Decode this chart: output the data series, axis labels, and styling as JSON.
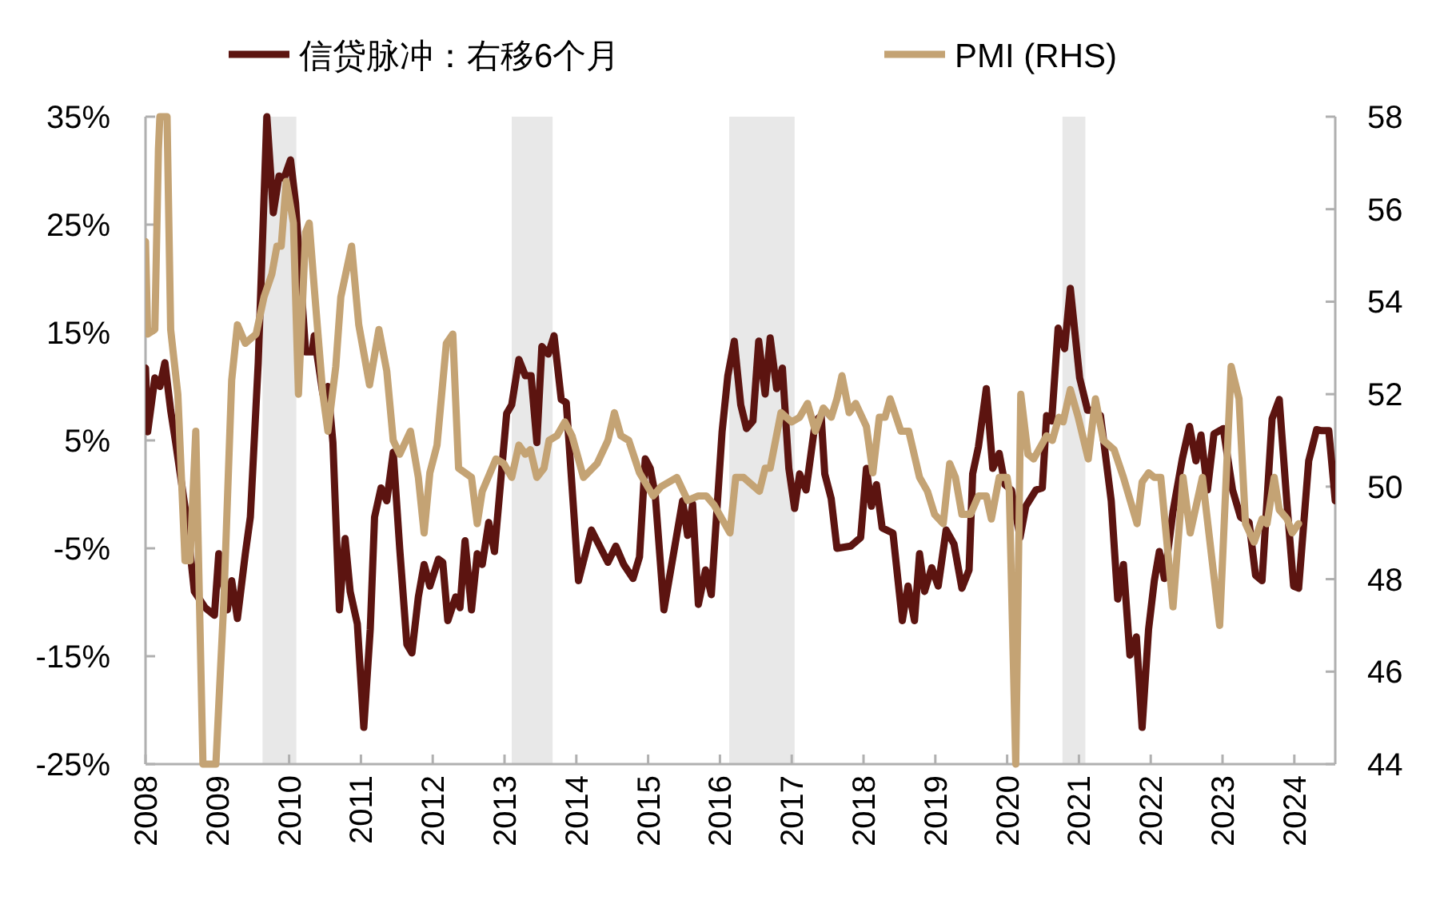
{
  "chart_data": {
    "type": "line",
    "legend": "top",
    "xlim": [
      2008,
      2024.57
    ],
    "xticks": [
      2008,
      2009,
      2010,
      2011,
      2012,
      2013,
      2014,
      2015,
      2016,
      2017,
      2018,
      2019,
      2020,
      2021,
      2022,
      2023,
      2024
    ],
    "ylim": [
      -25,
      35
    ],
    "yticks": [
      {
        "value": -25,
        "label": "-25%"
      },
      {
        "value": -15,
        "label": "-15%"
      },
      {
        "value": -5,
        "label": "-5%"
      },
      {
        "value": 5,
        "label": "5%"
      },
      {
        "value": 15,
        "label": "15%"
      },
      {
        "value": 25,
        "label": "25%"
      },
      {
        "value": 35,
        "label": "35%"
      }
    ],
    "y2lim": [
      44,
      58
    ],
    "y2ticks": [
      44,
      46,
      48,
      50,
      52,
      54,
      56,
      58
    ],
    "bands": [
      {
        "axis": "x",
        "from": 2009.63,
        "to": 2010.1,
        "color": "#e8e8e8"
      },
      {
        "axis": "x",
        "from": 2013.1,
        "to": 2013.67,
        "color": "#e8e8e8"
      },
      {
        "axis": "x",
        "from": 2016.13,
        "to": 2017.04,
        "color": "#e8e8e8"
      },
      {
        "axis": "x",
        "from": 2020.77,
        "to": 2021.09,
        "color": "#e8e8e8"
      }
    ],
    "series": [
      {
        "name": "信贷脉冲：右移6个月",
        "color": "#5c1410",
        "axis": "y",
        "x": [
          2008.0,
          2008.03,
          2008.13,
          2008.2,
          2008.27,
          2008.35,
          2008.42,
          2008.57,
          2008.68,
          2008.83,
          2008.96,
          2009.02,
          2009.14,
          2009.2,
          2009.28,
          2009.39,
          2009.46,
          2009.57,
          2009.69,
          2009.78,
          2009.86,
          2009.93,
          2010.02,
          2010.09,
          2010.23,
          2010.32,
          2010.35,
          2010.47,
          2010.54,
          2010.61,
          2010.7,
          2010.78,
          2010.85,
          2010.95,
          2011.04,
          2011.13,
          2011.19,
          2011.28,
          2011.36,
          2011.45,
          2011.54,
          2011.64,
          2011.71,
          2011.8,
          2011.88,
          2011.96,
          2012.08,
          2012.14,
          2012.21,
          2012.32,
          2012.38,
          2012.45,
          2012.54,
          2012.62,
          2012.69,
          2012.78,
          2012.86,
          2013.03,
          2013.1,
          2013.2,
          2013.29,
          2013.37,
          2013.45,
          2013.52,
          2013.61,
          2013.69,
          2013.79,
          2013.86,
          2014.03,
          2014.21,
          2014.44,
          2014.55,
          2014.66,
          2014.79,
          2014.88,
          2014.96,
          2015.03,
          2015.1,
          2015.22,
          2015.48,
          2015.55,
          2015.62,
          2015.7,
          2015.8,
          2015.88,
          2016.03,
          2016.11,
          2016.2,
          2016.29,
          2016.37,
          2016.46,
          2016.54,
          2016.63,
          2016.7,
          2016.79,
          2016.87,
          2016.96,
          2017.04,
          2017.11,
          2017.2,
          2017.33,
          2017.41,
          2017.46,
          2017.55,
          2017.63,
          2017.82,
          2017.96,
          2018.04,
          2018.11,
          2018.18,
          2018.26,
          2018.41,
          2018.54,
          2018.62,
          2018.71,
          2018.78,
          2018.85,
          2018.95,
          2019.04,
          2019.15,
          2019.26,
          2019.37,
          2019.47,
          2019.52,
          2019.6,
          2019.71,
          2019.8,
          2019.89,
          2019.97,
          2020.06,
          2020.18,
          2020.26,
          2020.4,
          2020.49,
          2020.55,
          2020.62,
          2020.71,
          2020.8,
          2020.88,
          2021.01,
          2021.12,
          2021.19,
          2021.3,
          2021.45,
          2021.54,
          2021.62,
          2021.71,
          2021.8,
          2021.88,
          2021.97,
          2022.05,
          2022.12,
          2022.19,
          2022.31,
          2022.44,
          2022.54,
          2022.63,
          2022.7,
          2022.79,
          2022.88,
          2023.01,
          2023.14,
          2023.25,
          2023.37,
          2023.46,
          2023.55,
          2023.69,
          2023.79,
          2023.9,
          2023.99,
          2024.06,
          2024.2,
          2024.31,
          2024.38,
          2024.48,
          2024.57
        ],
        "values": [
          11.7,
          5.8,
          10.8,
          10,
          12.2,
          7.8,
          4.8,
          -2.1,
          -9,
          -10.5,
          -11.2,
          -5.5,
          -10.7,
          -8,
          -11.5,
          -5.5,
          -2.1,
          12.2,
          35,
          26.1,
          29.5,
          29.3,
          31,
          27,
          13.2,
          13.2,
          14.7,
          9.3,
          10,
          4.8,
          -10.7,
          -4.1,
          -9,
          -12,
          -21.6,
          -12.5,
          -2.1,
          0.6,
          -0.6,
          3.9,
          -5,
          -13.9,
          -14.7,
          -9.5,
          -6.5,
          -8.5,
          -6,
          -6.3,
          -11.7,
          -9.5,
          -10.5,
          -4.3,
          -10.7,
          -5.5,
          -6.5,
          -2.6,
          -5.3,
          7.5,
          8.3,
          12.5,
          11,
          11,
          4.8,
          13.7,
          13,
          14.7,
          8.8,
          8.5,
          -8,
          -3.3,
          -6.3,
          -4.8,
          -6.5,
          -7.8,
          -5.8,
          3.3,
          2.4,
          -0.1,
          -10.7,
          -0.6,
          -3.8,
          -0.9,
          -10.2,
          -7,
          -9.3,
          5.8,
          11,
          14.2,
          8.3,
          6.1,
          6.8,
          14.2,
          9.3,
          14.5,
          9.8,
          11.7,
          2.4,
          -1.3,
          1.9,
          0.4,
          6.8,
          7.3,
          1.9,
          -0.4,
          -5,
          -4.8,
          -4,
          2.4,
          -1.1,
          0.9,
          -3.1,
          -3.6,
          -11.7,
          -8.5,
          -11.7,
          -5.5,
          -9,
          -6.8,
          -8.5,
          -3.3,
          -4.6,
          -8.7,
          -7,
          1.9,
          4.4,
          9.8,
          2.4,
          3.8,
          0.9,
          0.4,
          -4,
          -1.1,
          0.4,
          0.6,
          7.3,
          6.8,
          15.4,
          13.5,
          19.1,
          10.8,
          7.8,
          7.8,
          7.3,
          -0.6,
          -9.7,
          -6.5,
          -14.9,
          -13.2,
          -21.6,
          -12.5,
          -8,
          -5.3,
          -7.8,
          -1.6,
          3.3,
          6.3,
          3.1,
          5.5,
          0.4,
          5.6,
          6.1,
          0.4,
          -2.1,
          -2.6,
          -7.5,
          -8,
          7.0,
          8.8,
          -1.1,
          -8.5,
          -8.7,
          3.1,
          6.0,
          5.9,
          5.9,
          -0.6
        ]
      },
      {
        "name": "PMI (RHS)",
        "color": "#c4a374",
        "axis": "y2",
        "x": [
          2008.0,
          2008.03,
          2008.13,
          2008.18,
          2008.2,
          2008.3,
          2008.35,
          2008.45,
          2008.55,
          2008.62,
          2008.7,
          2008.8,
          2008.98,
          2009.09,
          2009.2,
          2009.28,
          2009.39,
          2009.54,
          2009.65,
          2009.76,
          2009.83,
          2009.89,
          2009.96,
          2010.06,
          2010.13,
          2010.23,
          2010.28,
          2010.35,
          2010.47,
          2010.54,
          2010.65,
          2010.72,
          2010.87,
          2010.97,
          2011.12,
          2011.25,
          2011.36,
          2011.45,
          2011.54,
          2011.69,
          2011.8,
          2011.88,
          2011.96,
          2012.06,
          2012.19,
          2012.28,
          2012.36,
          2012.54,
          2012.62,
          2012.69,
          2012.88,
          2012.99,
          2013.1,
          2013.2,
          2013.29,
          2013.36,
          2013.45,
          2013.55,
          2013.62,
          2013.73,
          2013.84,
          2013.94,
          2014.1,
          2014.29,
          2014.44,
          2014.53,
          2014.62,
          2014.73,
          2014.88,
          2015.07,
          2015.18,
          2015.4,
          2015.55,
          2015.7,
          2015.81,
          2015.92,
          2016.03,
          2016.14,
          2016.22,
          2016.33,
          2016.55,
          2016.63,
          2016.7,
          2016.85,
          2017.0,
          2017.11,
          2017.22,
          2017.33,
          2017.44,
          2017.55,
          2017.63,
          2017.7,
          2017.8,
          2017.89,
          2018.04,
          2018.13,
          2018.22,
          2018.3,
          2018.37,
          2018.52,
          2018.63,
          2018.78,
          2018.89,
          2018.99,
          2019.11,
          2019.2,
          2019.28,
          2019.37,
          2019.49,
          2019.6,
          2019.71,
          2019.78,
          2019.89,
          2020.0,
          2020.03,
          2020.12,
          2020.19,
          2020.29,
          2020.37,
          2020.55,
          2020.63,
          2020.72,
          2020.78,
          2020.88,
          2020.99,
          2021.13,
          2021.23,
          2021.34,
          2021.49,
          2021.62,
          2021.81,
          2021.88,
          2021.97,
          2022.05,
          2022.14,
          2022.31,
          2022.45,
          2022.55,
          2022.72,
          2022.96,
          2023.12,
          2023.23,
          2023.32,
          2023.44,
          2023.55,
          2023.62,
          2023.72,
          2023.79,
          2023.9,
          2023.97,
          2024.06
        ],
        "values": [
          55.3,
          53.3,
          53.4,
          57.3,
          58,
          58,
          53.4,
          52,
          48.4,
          48.4,
          51.2,
          44,
          44,
          47.5,
          52.3,
          53.5,
          53.1,
          53.3,
          54.1,
          54.6,
          55.2,
          55.2,
          56.6,
          55.7,
          52,
          55.5,
          55.7,
          54.3,
          52,
          51.2,
          52.6,
          54.1,
          55.2,
          53.5,
          52.2,
          53.4,
          52.5,
          51,
          50.7,
          51.2,
          50.2,
          49,
          50.3,
          50.9,
          53.1,
          53.3,
          50.4,
          50.2,
          49.2,
          49.9,
          50.6,
          50.5,
          50.2,
          50.9,
          50.7,
          50.8,
          50.2,
          50.4,
          51,
          51.1,
          51.4,
          51.1,
          50.2,
          50.5,
          51,
          51.6,
          51.1,
          51,
          50.3,
          49.8,
          50,
          50.2,
          49.7,
          49.8,
          49.8,
          49.6,
          49.3,
          49,
          50.2,
          50.2,
          49.9,
          50.4,
          50.4,
          51.6,
          51.4,
          51.5,
          51.8,
          51.2,
          51.7,
          51.5,
          51.9,
          52.4,
          51.6,
          51.8,
          51.3,
          50.3,
          51.5,
          51.5,
          51.9,
          51.2,
          51.2,
          50.2,
          49.9,
          49.4,
          49.2,
          50.5,
          50.2,
          49.4,
          49.4,
          49.8,
          49.8,
          49.3,
          50.2,
          50.2,
          49.9,
          44,
          52,
          50.7,
          50.6,
          51.1,
          51,
          51.5,
          51.4,
          52.1,
          51.5,
          50.6,
          51.9,
          51,
          50.8,
          50.2,
          49.2,
          50.1,
          50.3,
          50.2,
          50.2,
          47.4,
          50.2,
          49,
          50.2,
          47,
          52.6,
          51.9,
          49.2,
          48.8,
          49.3,
          49.2,
          50.2,
          49.5,
          49.3,
          49,
          49.2
        ]
      }
    ]
  }
}
